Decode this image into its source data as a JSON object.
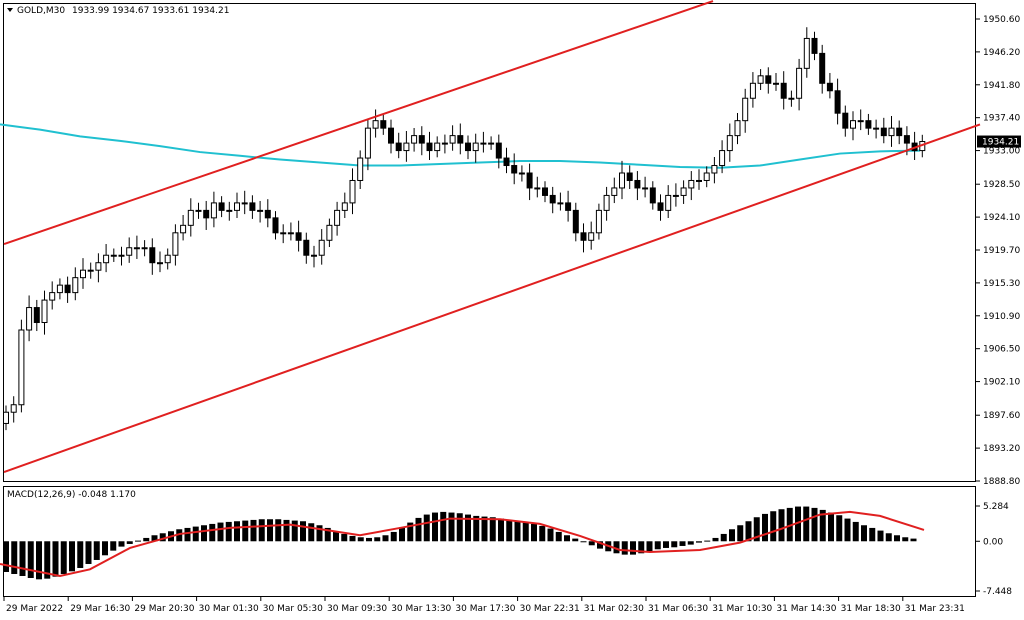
{
  "header": {
    "symbol": "GOLD,M30",
    "ohlc": "1933.99 1934.67 1933.61 1934.21",
    "indicator": "MACD(12,26,9) -0.048 1.170"
  },
  "price_label": "1934.21",
  "colors": {
    "channel": "#e02020",
    "ma": "#20c0d0",
    "macd_signal": "#e02020",
    "bull_fill": "#ffffff",
    "bear_fill": "#000000",
    "grid": "#000000"
  },
  "chart_data": [
    {
      "type": "candlestick",
      "title": "GOLD,M30",
      "ylim": [
        1888.8,
        1953.0
      ],
      "y_ticks": [
        "1950.60",
        "1946.20",
        "1941.80",
        "1937.40",
        "1933.00",
        "1928.50",
        "1924.10",
        "1919.70",
        "1915.30",
        "1910.90",
        "1906.50",
        "1902.10",
        "1897.60",
        "1893.20",
        "1888.80"
      ],
      "x_ticks": [
        "29 Mar 2022",
        "29 Mar 16:30",
        "29 Mar 20:30",
        "30 Mar 01:30",
        "30 Mar 05:30",
        "30 Mar 09:30",
        "30 Mar 13:30",
        "30 Mar 17:30",
        "30 Mar 22:31",
        "31 Mar 02:30",
        "31 Mar 06:30",
        "31 Mar 10:30",
        "31 Mar 14:30",
        "31 Mar 18:30",
        "31 Mar 23:31"
      ],
      "current_price": 1934.21,
      "close": [
        1898,
        1899,
        1909,
        1912,
        1910,
        1913,
        1914,
        1915,
        1914,
        1916,
        1917,
        1917,
        1918,
        1919,
        1919,
        1919,
        1920,
        1920,
        1920,
        1918,
        1918,
        1919,
        1922,
        1923,
        1925,
        1925,
        1924,
        1926,
        1925,
        1925,
        1926,
        1926,
        1925,
        1925,
        1924,
        1922,
        1922,
        1922,
        1921,
        1919,
        1919,
        1921,
        1923,
        1925,
        1926,
        1929,
        1932,
        1936,
        1937,
        1936,
        1934,
        1933,
        1934,
        1935,
        1934,
        1933,
        1934,
        1934,
        1935,
        1934,
        1933,
        1934,
        1934,
        1934,
        1932,
        1931,
        1930,
        1930,
        1928,
        1928,
        1927,
        1926,
        1926,
        1925,
        1922,
        1921,
        1922,
        1925,
        1927,
        1928,
        1930,
        1929,
        1928,
        1928,
        1926,
        1925,
        1927,
        1927,
        1928,
        1929,
        1929,
        1930,
        1931,
        1933,
        1935,
        1937,
        1940,
        1942,
        1943,
        1942,
        1942,
        1940,
        1940,
        1944,
        1948,
        1946,
        1942,
        1941,
        1938,
        1936,
        1937,
        1937,
        1936,
        1936,
        1935,
        1936,
        1935,
        1934,
        1933,
        1934.21
      ],
      "ma": [
        [
          0,
          1936.5
        ],
        [
          40,
          1935.8
        ],
        [
          80,
          1934.9
        ],
        [
          120,
          1934.3
        ],
        [
          160,
          1933.6
        ],
        [
          200,
          1932.8
        ],
        [
          240,
          1932.3
        ],
        [
          280,
          1931.8
        ],
        [
          320,
          1931.4
        ],
        [
          360,
          1931.0
        ],
        [
          400,
          1931.0
        ],
        [
          440,
          1931.2
        ],
        [
          480,
          1931.4
        ],
        [
          520,
          1931.6
        ],
        [
          560,
          1931.6
        ],
        [
          600,
          1931.4
        ],
        [
          640,
          1931.1
        ],
        [
          680,
          1930.8
        ],
        [
          720,
          1930.7
        ],
        [
          760,
          1931.0
        ],
        [
          800,
          1931.8
        ],
        [
          840,
          1932.6
        ],
        [
          880,
          1932.9
        ],
        [
          920,
          1933.0
        ]
      ],
      "channel_upper": [
        [
          0,
          1920.5
        ],
        [
          713,
          1953.0
        ]
      ],
      "channel_lower": [
        [
          0,
          1890.0
        ],
        [
          980,
          1936.5
        ]
      ]
    },
    {
      "type": "bar",
      "title": "MACD(12,26,9)",
      "ylim": [
        -7.448,
        5.284
      ],
      "y_ticks": [
        "5.284",
        "0.00",
        "-7.448"
      ],
      "histogram": [
        -4.6,
        -4.9,
        -5.2,
        -5.5,
        -5.7,
        -5.6,
        -5.3,
        -4.9,
        -4.5,
        -4.0,
        -3.4,
        -2.8,
        -2.1,
        -1.4,
        -0.8,
        -0.4,
        0.1,
        0.5,
        0.9,
        1.2,
        1.5,
        1.8,
        2.0,
        2.2,
        2.4,
        2.6,
        2.8,
        2.9,
        3.0,
        3.1,
        3.2,
        3.3,
        3.3,
        3.3,
        3.2,
        3.1,
        3.0,
        2.7,
        2.4,
        2.0,
        1.5,
        1.1,
        0.8,
        0.6,
        0.5,
        0.6,
        0.9,
        1.4,
        2.1,
        2.8,
        3.5,
        4.0,
        4.3,
        4.4,
        4.3,
        4.2,
        4.0,
        3.8,
        3.7,
        3.6,
        3.4,
        3.2,
        3.0,
        2.8,
        2.6,
        2.3,
        1.9,
        1.4,
        0.9,
        0.4,
        -0.1,
        -0.6,
        -1.1,
        -1.5,
        -1.8,
        -2.0,
        -2.0,
        -1.8,
        -1.5,
        -1.2,
        -1.0,
        -0.9,
        -0.7,
        -0.5,
        -0.2,
        0.1,
        0.5,
        1.1,
        1.8,
        2.4,
        3.0,
        3.6,
        4.1,
        4.5,
        4.8,
        5.0,
        5.2,
        5.2,
        5.0,
        4.7,
        4.3,
        3.9,
        3.4,
        2.9,
        2.4,
        2.0,
        1.6,
        1.2,
        0.9,
        0.6,
        0.4
      ],
      "signal": [
        [
          0,
          -3.4
        ],
        [
          60,
          -5.2
        ],
        [
          90,
          -4.2
        ],
        [
          130,
          -1.0
        ],
        [
          180,
          1.1
        ],
        [
          230,
          2.0
        ],
        [
          290,
          2.5
        ],
        [
          330,
          1.6
        ],
        [
          360,
          0.9
        ],
        [
          400,
          2.0
        ],
        [
          450,
          3.4
        ],
        [
          500,
          3.3
        ],
        [
          540,
          2.6
        ],
        [
          580,
          0.8
        ],
        [
          620,
          -1.3
        ],
        [
          650,
          -1.6
        ],
        [
          700,
          -1.3
        ],
        [
          740,
          -0.2
        ],
        [
          780,
          1.8
        ],
        [
          820,
          4.0
        ],
        [
          850,
          4.4
        ],
        [
          880,
          3.8
        ],
        [
          924,
          1.7
        ]
      ]
    }
  ]
}
